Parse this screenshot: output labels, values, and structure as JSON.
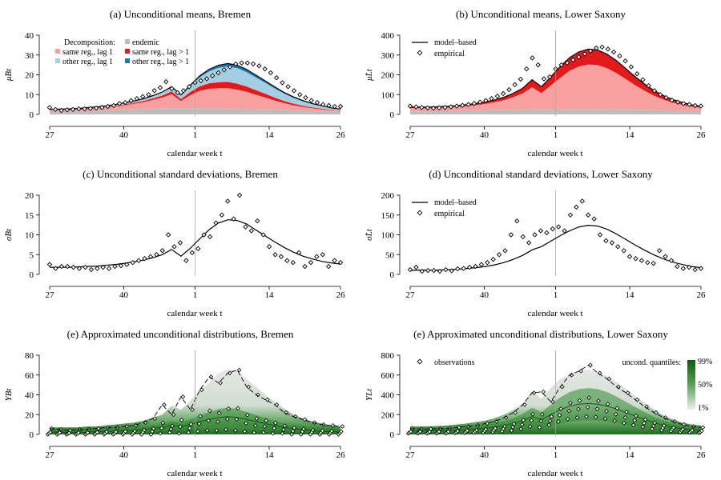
{
  "chart_data": [
    {
      "id": "a",
      "type": "area",
      "title": "(a) Unconditional means, Bremen",
      "xlabel": "calendar week t",
      "ylabel": "μ̂Bt",
      "xticks": [
        "27",
        "40",
        "1",
        "14",
        "26"
      ],
      "ylim": [
        0,
        40
      ],
      "yticks": [
        0,
        10,
        20,
        30,
        40
      ],
      "legend_title": "Decomposition:",
      "series": [
        {
          "name": "endemic",
          "color": "#bdbdbd",
          "values": [
            1.2,
            1.3,
            1.4,
            1.5,
            1.6,
            1.8,
            2.0,
            2.2,
            2.4,
            2.6,
            2.8,
            3.0,
            3.1,
            3.2,
            3.2,
            3.2,
            3.2,
            3.1,
            3.0,
            3.0,
            2.9,
            2.8,
            2.6,
            2.5,
            2.3,
            2.1,
            1.9,
            1.8,
            1.6,
            1.5,
            1.3,
            1.2
          ]
        },
        {
          "name": "same reg., lag 1",
          "color": "#f8a0a0",
          "values": [
            1.0,
            1.0,
            1.0,
            1.1,
            1.2,
            1.4,
            1.6,
            1.9,
            2.3,
            2.8,
            3.4,
            4.3,
            5.4,
            7.0,
            3.6,
            6.5,
            8.7,
            9.8,
            10.2,
            10.2,
            9.6,
            8.6,
            7.3,
            6.0,
            4.7,
            3.6,
            2.7,
            2.0,
            1.5,
            1.1,
            0.8,
            0.6
          ]
        },
        {
          "name": "same reg., lag > 1",
          "color": "#e31a1c",
          "values": [
            0.1,
            0.1,
            0.1,
            0.1,
            0.2,
            0.2,
            0.2,
            0.3,
            0.4,
            0.5,
            0.6,
            0.8,
            1.0,
            1.4,
            0.9,
            1.6,
            2.3,
            2.8,
            3.1,
            3.2,
            3.0,
            2.7,
            2.3,
            1.9,
            1.5,
            1.1,
            0.8,
            0.6,
            0.4,
            0.3,
            0.2,
            0.1
          ]
        },
        {
          "name": "other reg., lag 1",
          "color": "#a6cee3",
          "values": [
            0.3,
            0.3,
            0.3,
            0.3,
            0.4,
            0.4,
            0.5,
            0.6,
            0.7,
            0.8,
            1.0,
            1.3,
            1.6,
            2.1,
            1.8,
            3.0,
            4.5,
            6.0,
            7.2,
            7.8,
            7.8,
            7.2,
            6.4,
            5.5,
            4.6,
            3.7,
            2.9,
            2.2,
            1.7,
            1.3,
            0.9,
            0.7
          ]
        },
        {
          "name": "other reg., lag > 1",
          "color": "#1f78b4",
          "values": [
            0.0,
            0.0,
            0.0,
            0.0,
            0.0,
            0.0,
            0.0,
            0.0,
            0.1,
            0.1,
            0.1,
            0.1,
            0.2,
            0.3,
            0.3,
            0.5,
            0.8,
            1.1,
            1.3,
            1.5,
            1.5,
            1.4,
            1.2,
            1.0,
            0.8,
            0.6,
            0.5,
            0.4,
            0.3,
            0.2,
            0.1,
            0.1
          ]
        }
      ],
      "model_line": [
        2.6,
        2.7,
        2.8,
        3.0,
        3.4,
        3.8,
        4.3,
        5.0,
        5.9,
        6.8,
        7.9,
        9.5,
        11.3,
        14.0,
        9.8,
        14.8,
        19.5,
        22.8,
        24.8,
        25.7,
        24.8,
        22.7,
        19.8,
        16.9,
        13.9,
        11.1,
        8.8,
        7.0,
        5.5,
        4.4,
        3.3,
        2.7
      ],
      "empirical": [
        3.5,
        2.5,
        2.0,
        2.3,
        2.5,
        2.8,
        2.8,
        3.0,
        3.2,
        3.5,
        4.0,
        4.5,
        5.5,
        6.0,
        7.0,
        8.0,
        9.0,
        10.0,
        12.0,
        13.5,
        16.5,
        13.0,
        11.0,
        12.0,
        14.0,
        16.0,
        17.0,
        18.0,
        19.5,
        21.0,
        22.5,
        24.0,
        25.5,
        26.0,
        26.0,
        25.5,
        24.5,
        23.0,
        21.0,
        18.5,
        16.0,
        14.0,
        12.0,
        10.0,
        8.5,
        7.0,
        6.0,
        5.0,
        4.5,
        4.0,
        4.0
      ]
    },
    {
      "id": "b",
      "type": "area",
      "title": "(b) Unconditional means, Lower Saxony",
      "xlabel": "calendar week t",
      "ylabel": "μ̂Lt",
      "xticks": [
        "27",
        "40",
        "1",
        "14",
        "26"
      ],
      "ylim": [
        0,
        400
      ],
      "yticks": [
        0,
        100,
        200,
        300,
        400
      ],
      "legend": [
        "model–based",
        "empirical"
      ],
      "series": [
        {
          "name": "endemic",
          "color": "#bdbdbd",
          "values": [
            15,
            15,
            15,
            16,
            16,
            17,
            18,
            19,
            20,
            21,
            22,
            23,
            24,
            25,
            25,
            26,
            27,
            28,
            28,
            28,
            28,
            27,
            26,
            25,
            24,
            23,
            21,
            20,
            18,
            17,
            15,
            14
          ]
        },
        {
          "name": "same reg., lag 1",
          "color": "#f8a0a0",
          "values": [
            17,
            17,
            17,
            18,
            19,
            21,
            24,
            28,
            33,
            40,
            50,
            64,
            82,
            112,
            82,
            120,
            158,
            192,
            214,
            224,
            221,
            206,
            182,
            153,
            123,
            96,
            73,
            55,
            42,
            32,
            24,
            20
          ]
        },
        {
          "name": "same reg., lag > 1",
          "color": "#e31a1c",
          "values": [
            5,
            5,
            5,
            5,
            6,
            6,
            7,
            8,
            10,
            12,
            15,
            20,
            26,
            38,
            33,
            44,
            57,
            67,
            74,
            78,
            76,
            71,
            63,
            53,
            43,
            34,
            26,
            20,
            15,
            12,
            9,
            7
          ]
        }
      ],
      "model_line": [
        37,
        37,
        37,
        39,
        41,
        44,
        49,
        55,
        63,
        73,
        87,
        107,
        132,
        175,
        140,
        190,
        242,
        287,
        316,
        330,
        325,
        304,
        271,
        231,
        190,
        153,
        120,
        95,
        75,
        61,
        48,
        41
      ],
      "empirical": [
        42,
        38,
        35,
        33,
        32,
        33,
        35,
        38,
        42,
        46,
        50,
        55,
        62,
        70,
        80,
        92,
        105,
        125,
        150,
        178,
        230,
        285,
        250,
        180,
        190,
        230,
        250,
        260,
        275,
        290,
        305,
        320,
        335,
        340,
        330,
        315,
        295,
        270,
        240,
        205,
        175,
        145,
        120,
        100,
        85,
        72,
        62,
        55,
        50,
        45,
        42
      ]
    },
    {
      "id": "c",
      "type": "line",
      "title": "(c) Unconditional standard deviations, Bremen",
      "xlabel": "calendar week t",
      "ylabel": "σ̂Bt",
      "xticks": [
        "27",
        "40",
        "1",
        "14",
        "26"
      ],
      "ylim": [
        0,
        20
      ],
      "yticks": [
        0,
        5,
        10,
        15,
        20
      ],
      "model_line": [
        1.8,
        1.8,
        1.8,
        1.9,
        2.0,
        2.1,
        2.3,
        2.5,
        2.8,
        3.2,
        3.6,
        4.2,
        5.0,
        6.3,
        4.6,
        6.6,
        9.0,
        11.3,
        13.0,
        13.8,
        13.6,
        12.7,
        11.2,
        9.7,
        8.2,
        6.8,
        5.6,
        4.6,
        3.9,
        3.3,
        2.9,
        2.6
      ],
      "empirical": [
        2.5,
        1.5,
        2.0,
        2.0,
        1.8,
        1.5,
        1.8,
        1.2,
        1.5,
        1.8,
        1.5,
        2.0,
        2.2,
        2.5,
        3.0,
        3.5,
        4.0,
        4.5,
        5.0,
        6.0,
        10.0,
        7.0,
        8.0,
        3.5,
        5.5,
        6.5,
        10.0,
        9.5,
        13.0,
        15.0,
        18.5,
        14.0,
        20.0,
        12.0,
        11.0,
        13.5,
        10.0,
        7.0,
        5.0,
        4.5,
        3.5,
        3.0,
        5.5,
        2.0,
        3.0,
        4.5,
        5.0,
        2.0,
        3.5,
        3.0
      ]
    },
    {
      "id": "d",
      "type": "line",
      "title": "(d) Unconditional standard deviations, Lower Saxony",
      "xlabel": "calendar week t",
      "ylabel": "σ̂Lt",
      "xticks": [
        "27",
        "40",
        "1",
        "14",
        "26"
      ],
      "ylim": [
        0,
        200
      ],
      "yticks": [
        0,
        50,
        100,
        150,
        200
      ],
      "legend": [
        "model–based",
        "empirical"
      ],
      "model_line": [
        10,
        11,
        11,
        11,
        12,
        13,
        15,
        17,
        20,
        24,
        30,
        38,
        48,
        62,
        70,
        84,
        98,
        110,
        120,
        124,
        122,
        114,
        102,
        88,
        74,
        61,
        49,
        39,
        31,
        25,
        20,
        17
      ],
      "empirical": [
        12,
        18,
        8,
        10,
        10,
        8,
        12,
        9,
        14,
        15,
        18,
        20,
        25,
        30,
        38,
        50,
        60,
        100,
        135,
        95,
        80,
        100,
        110,
        105,
        115,
        120,
        110,
        150,
        170,
        185,
        150,
        140,
        100,
        85,
        80,
        70,
        60,
        45,
        40,
        35,
        30,
        28,
        60,
        45,
        35,
        20,
        15,
        18,
        12,
        15
      ]
    },
    {
      "id": "e1",
      "type": "area",
      "title": "(e) Approximated unconditional distributions, Bremen",
      "xlabel": "calendar week t",
      "ylabel": "YBt",
      "xticks": [
        "27",
        "40",
        "1",
        "14",
        "26"
      ],
      "ylim": [
        0,
        80
      ],
      "yticks": [
        0,
        20,
        40,
        60,
        80
      ],
      "upper_quantile": [
        7,
        7,
        7,
        7,
        8,
        8,
        9,
        10,
        11,
        12,
        14,
        17,
        20,
        29,
        25,
        34,
        44,
        52,
        62,
        66,
        64,
        56,
        48,
        40,
        33,
        26,
        20,
        16,
        13,
        11,
        9,
        8
      ],
      "median_line": [
        2,
        2,
        2,
        2,
        2,
        3,
        3,
        3,
        4,
        4,
        5,
        6,
        7,
        9,
        8,
        10,
        13,
        15,
        17,
        18,
        17,
        15,
        13,
        11,
        9,
        7,
        6,
        5,
        4,
        3,
        3,
        2
      ],
      "obs_max": [
        6,
        5,
        4,
        5,
        5,
        6,
        7,
        7,
        8,
        9,
        12,
        16,
        30,
        20,
        38,
        25,
        45,
        58,
        52,
        62,
        65,
        48,
        40,
        35,
        30,
        22,
        18,
        15,
        12,
        10,
        9,
        8
      ],
      "obs_min": [
        0,
        0,
        0,
        0,
        0,
        0,
        0,
        0,
        0,
        0,
        0,
        0,
        1,
        2,
        1,
        2,
        3,
        4,
        4,
        5,
        4,
        3,
        2,
        2,
        1,
        1,
        0,
        0,
        0,
        0,
        0,
        0
      ]
    },
    {
      "id": "e2",
      "type": "area",
      "title": "(e) Approximated unconditional distributions, Lower Saxony",
      "xlabel": "calendar week t",
      "ylabel": "YLt",
      "xticks": [
        "27",
        "40",
        "1",
        "14",
        "26"
      ],
      "ylim": [
        0,
        800
      ],
      "yticks": [
        0,
        200,
        400,
        600,
        800
      ],
      "legend": [
        "observations"
      ],
      "quantile_legend_title": "uncond. quantiles:",
      "quantile_legend_labels": [
        "99%",
        "50%",
        "1%"
      ],
      "upper_quantile": [
        80,
        80,
        82,
        85,
        90,
        100,
        110,
        125,
        140,
        165,
        200,
        250,
        310,
        440,
        360,
        470,
        560,
        610,
        640,
        650,
        630,
        590,
        530,
        460,
        390,
        320,
        250,
        190,
        150,
        120,
        100,
        90
      ],
      "median_line": [
        35,
        35,
        36,
        37,
        40,
        43,
        48,
        55,
        62,
        72,
        88,
        110,
        138,
        180,
        150,
        200,
        250,
        285,
        305,
        312,
        305,
        285,
        255,
        220,
        185,
        150,
        118,
        92,
        72,
        58,
        47,
        40
      ],
      "obs_max": [
        60,
        55,
        55,
        58,
        60,
        70,
        80,
        90,
        110,
        130,
        170,
        220,
        300,
        420,
        430,
        330,
        480,
        600,
        640,
        700,
        620,
        560,
        480,
        420,
        350,
        280,
        220,
        170,
        130,
        100,
        80,
        70
      ],
      "obs_min": [
        10,
        10,
        10,
        10,
        10,
        12,
        14,
        16,
        18,
        22,
        30,
        40,
        55,
        80,
        70,
        95,
        130,
        155,
        170,
        180,
        175,
        160,
        140,
        115,
        95,
        75,
        55,
        42,
        32,
        24,
        18,
        15
      ]
    }
  ]
}
